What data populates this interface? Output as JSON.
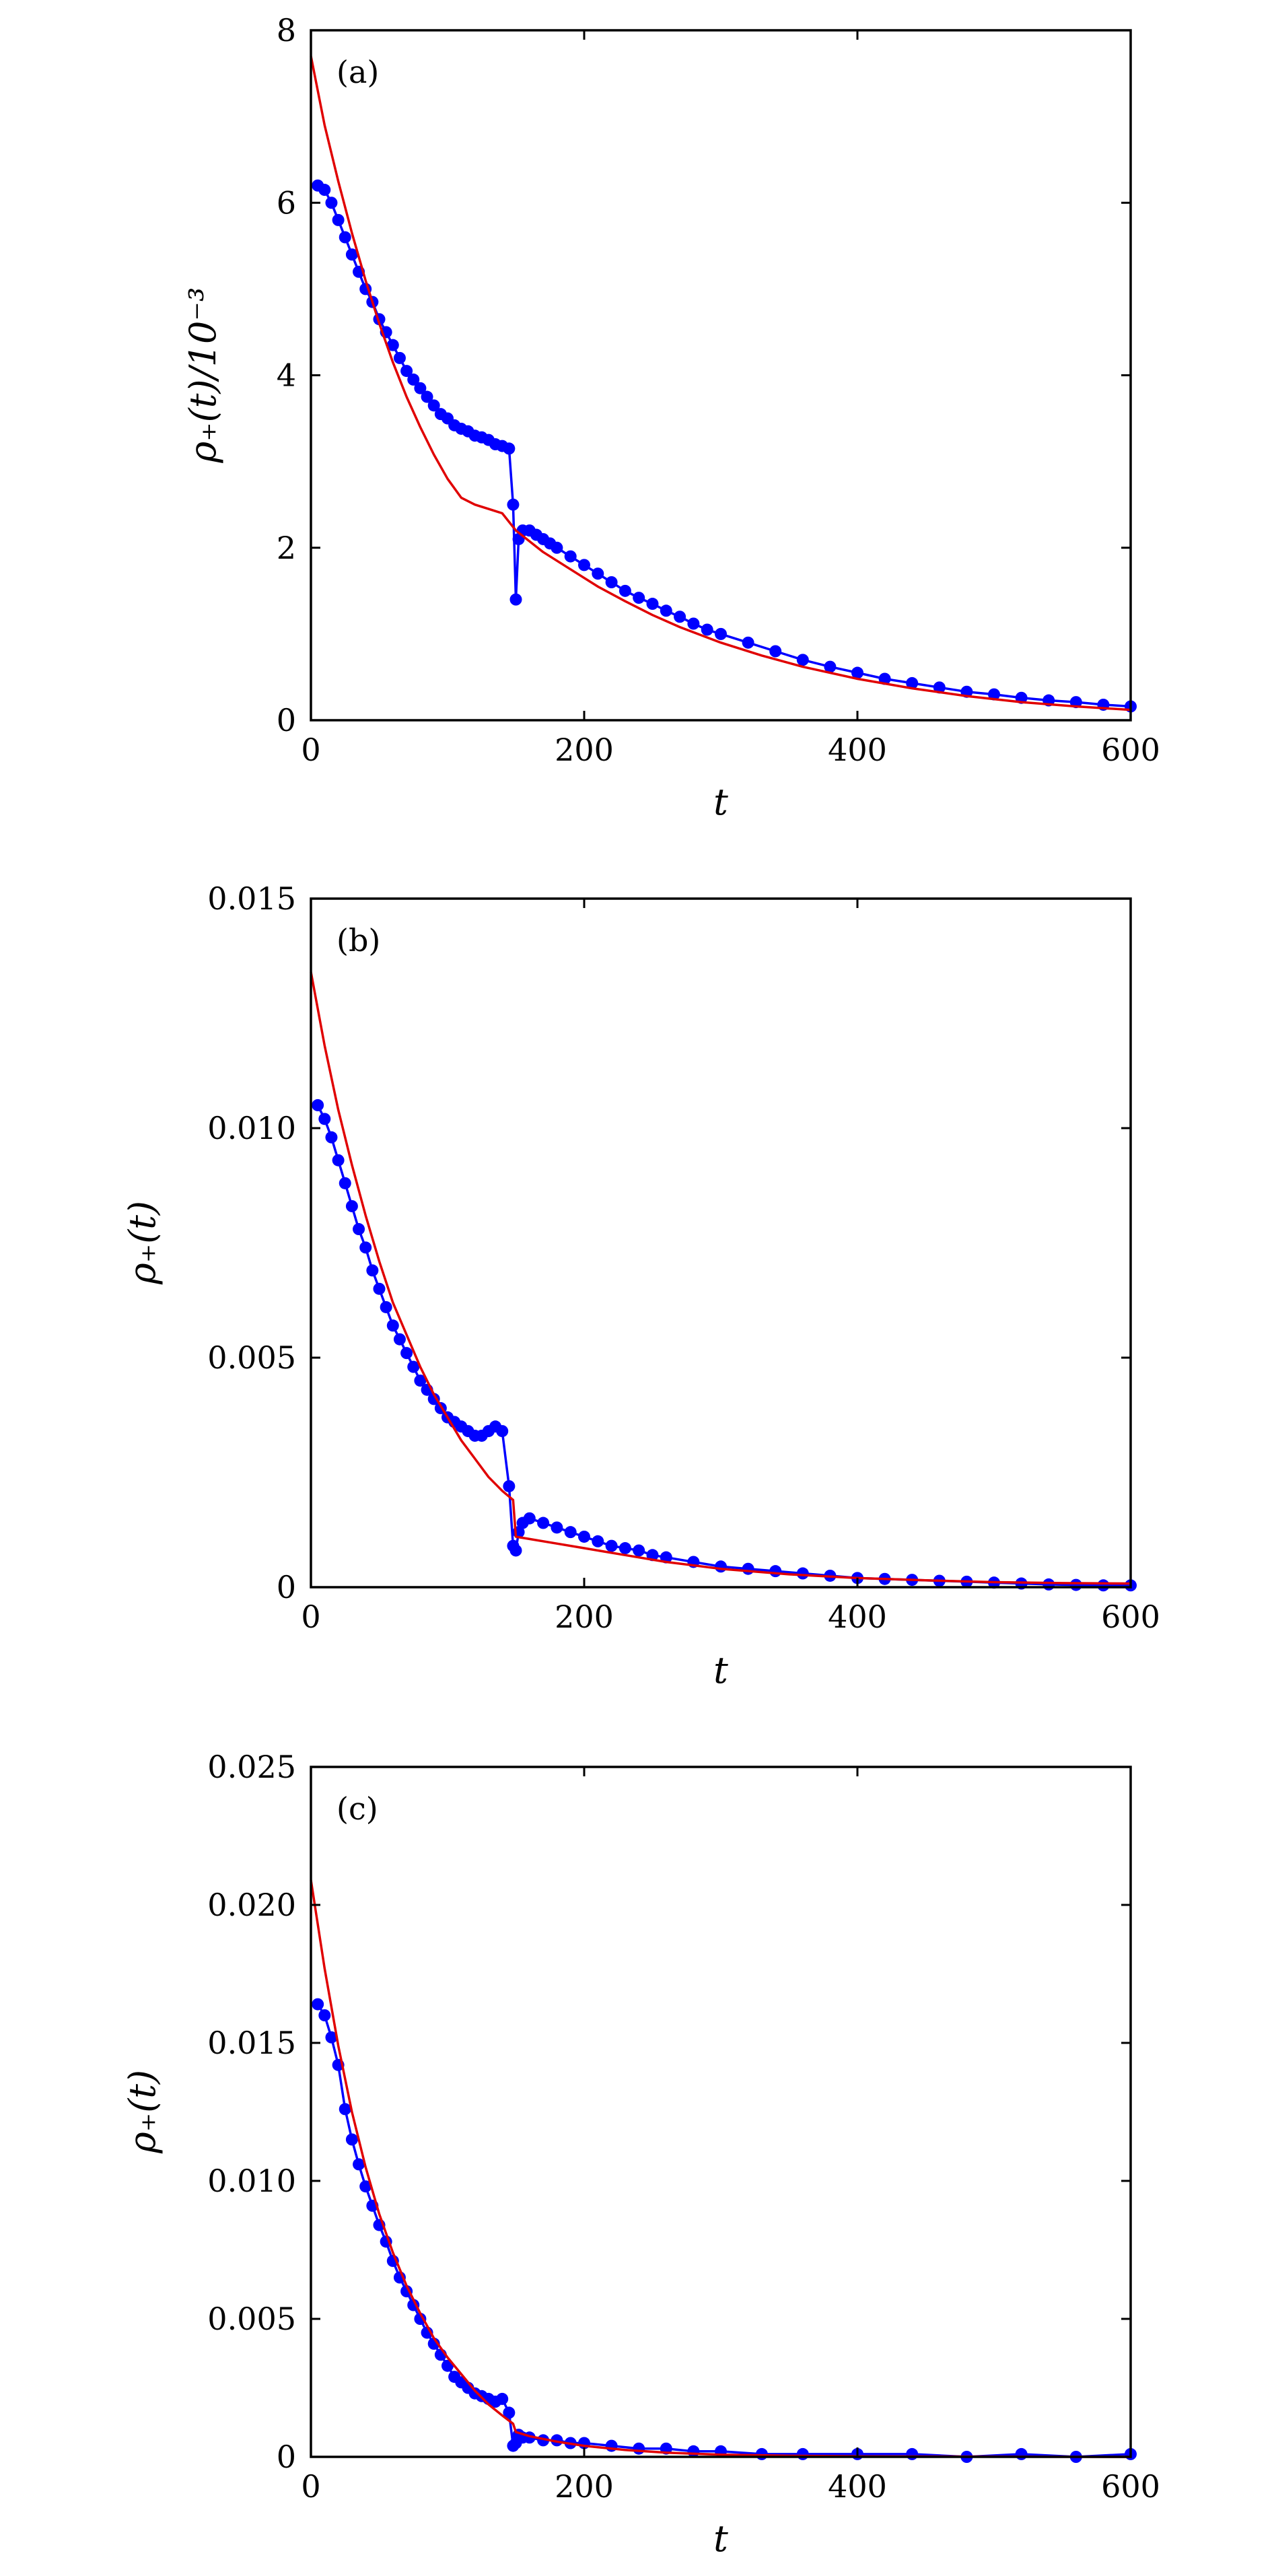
{
  "chart_data": [
    {
      "type": "line",
      "panel_label": "(a)",
      "xlabel": "t",
      "ylabel": "ρ₊(t)/10⁻³",
      "xlim": [
        0,
        600
      ],
      "ylim": [
        0,
        8
      ],
      "xticks": [
        0,
        200,
        400,
        600
      ],
      "yticks": [
        0,
        2,
        4,
        6,
        8
      ],
      "ytick_labels": [
        "0",
        "2",
        "4",
        "6",
        "8"
      ],
      "series": [
        {
          "style": "line-with-markers",
          "color": "#0000ff",
          "x": [
            5,
            10,
            15,
            20,
            25,
            30,
            35,
            40,
            45,
            50,
            55,
            60,
            65,
            70,
            75,
            80,
            85,
            90,
            95,
            100,
            105,
            110,
            115,
            120,
            125,
            130,
            135,
            140,
            145,
            148,
            150,
            152,
            155,
            160,
            165,
            170,
            175,
            180,
            190,
            200,
            210,
            220,
            230,
            240,
            250,
            260,
            270,
            280,
            290,
            300,
            320,
            340,
            360,
            380,
            400,
            420,
            440,
            460,
            480,
            500,
            520,
            540,
            560,
            580,
            600
          ],
          "y": [
            6.2,
            6.15,
            6.0,
            5.8,
            5.6,
            5.4,
            5.2,
            5.0,
            4.85,
            4.65,
            4.5,
            4.35,
            4.2,
            4.05,
            3.95,
            3.85,
            3.75,
            3.65,
            3.55,
            3.5,
            3.42,
            3.38,
            3.35,
            3.3,
            3.28,
            3.25,
            3.2,
            3.18,
            3.15,
            2.5,
            1.4,
            2.1,
            2.2,
            2.2,
            2.15,
            2.1,
            2.05,
            2.0,
            1.9,
            1.8,
            1.7,
            1.6,
            1.5,
            1.42,
            1.35,
            1.27,
            1.2,
            1.12,
            1.05,
            1.0,
            0.9,
            0.8,
            0.7,
            0.62,
            0.55,
            0.48,
            0.43,
            0.38,
            0.33,
            0.3,
            0.26,
            0.23,
            0.21,
            0.18,
            0.16
          ]
        },
        {
          "style": "line",
          "color": "#e00000",
          "x": [
            0,
            10,
            20,
            30,
            40,
            50,
            60,
            70,
            80,
            90,
            100,
            110,
            120,
            130,
            140,
            150,
            170,
            190,
            210,
            230,
            250,
            270,
            300,
            330,
            360,
            400,
            440,
            480,
            520,
            560,
            600
          ],
          "y": [
            7.7,
            6.9,
            6.25,
            5.65,
            5.1,
            4.6,
            4.15,
            3.75,
            3.4,
            3.08,
            2.8,
            2.58,
            2.5,
            2.45,
            2.4,
            2.2,
            1.95,
            1.75,
            1.55,
            1.38,
            1.22,
            1.08,
            0.9,
            0.75,
            0.62,
            0.48,
            0.37,
            0.28,
            0.21,
            0.16,
            0.12
          ]
        }
      ]
    },
    {
      "type": "line",
      "panel_label": "(b)",
      "xlabel": "t",
      "ylabel": "ρ₊(t)",
      "xlim": [
        0,
        600
      ],
      "ylim": [
        0,
        0.015
      ],
      "xticks": [
        0,
        200,
        400,
        600
      ],
      "yticks": [
        0,
        0.005,
        0.01,
        0.015
      ],
      "ytick_labels": [
        "0",
        "0.005",
        "0.010",
        "0.015"
      ],
      "series": [
        {
          "style": "line-with-markers",
          "color": "#0000ff",
          "x": [
            5,
            10,
            15,
            20,
            25,
            30,
            35,
            40,
            45,
            50,
            55,
            60,
            65,
            70,
            75,
            80,
            85,
            90,
            95,
            100,
            105,
            110,
            115,
            120,
            125,
            130,
            135,
            140,
            145,
            148,
            150,
            152,
            155,
            160,
            170,
            180,
            190,
            200,
            210,
            220,
            230,
            240,
            250,
            260,
            280,
            300,
            320,
            340,
            360,
            380,
            400,
            420,
            440,
            460,
            480,
            500,
            520,
            540,
            560,
            580,
            600
          ],
          "y": [
            0.0105,
            0.0102,
            0.0098,
            0.0093,
            0.0088,
            0.0083,
            0.0078,
            0.0074,
            0.0069,
            0.0065,
            0.0061,
            0.0057,
            0.0054,
            0.0051,
            0.0048,
            0.0045,
            0.0043,
            0.0041,
            0.0039,
            0.0037,
            0.0036,
            0.0035,
            0.0034,
            0.0033,
            0.0033,
            0.0034,
            0.0035,
            0.0034,
            0.0022,
            0.0009,
            0.0008,
            0.0012,
            0.0014,
            0.0015,
            0.0014,
            0.0013,
            0.0012,
            0.0011,
            0.001,
            0.0009,
            0.00085,
            0.0008,
            0.0007,
            0.00065,
            0.00055,
            0.00045,
            0.0004,
            0.00035,
            0.0003,
            0.00025,
            0.0002,
            0.00018,
            0.00016,
            0.00014,
            0.00012,
            0.0001,
            8e-05,
            6e-05,
            5e-05,
            4e-05,
            4e-05
          ]
        },
        {
          "style": "line",
          "color": "#e00000",
          "x": [
            0,
            10,
            20,
            30,
            40,
            50,
            60,
            70,
            80,
            90,
            100,
            110,
            120,
            130,
            140,
            148,
            150,
            160,
            180,
            200,
            230,
            260,
            300,
            350,
            400,
            450,
            500,
            550,
            600
          ],
          "y": [
            0.0134,
            0.0118,
            0.0104,
            0.0092,
            0.0081,
            0.0071,
            0.0062,
            0.0055,
            0.0048,
            0.0042,
            0.0037,
            0.0032,
            0.0028,
            0.0024,
            0.0021,
            0.0019,
            0.0011,
            0.00105,
            0.00095,
            0.00085,
            0.0007,
            0.00055,
            0.0004,
            0.00028,
            0.0002,
            0.00015,
            0.00011,
            9e-05,
            8e-05
          ]
        }
      ]
    },
    {
      "type": "line",
      "panel_label": "(c)",
      "xlabel": "t",
      "ylabel": "ρ₊(t)",
      "xlim": [
        0,
        600
      ],
      "ylim": [
        0,
        0.025
      ],
      "xticks": [
        0,
        200,
        400,
        600
      ],
      "yticks": [
        0,
        0.005,
        0.01,
        0.015,
        0.02,
        0.025
      ],
      "ytick_labels": [
        "0",
        "0.005",
        "0.010",
        "0.015",
        "0.020",
        "0.025"
      ],
      "series": [
        {
          "style": "line-with-markers",
          "color": "#0000ff",
          "x": [
            5,
            10,
            15,
            20,
            25,
            30,
            35,
            40,
            45,
            50,
            55,
            60,
            65,
            70,
            75,
            80,
            85,
            90,
            95,
            100,
            105,
            110,
            115,
            120,
            125,
            130,
            135,
            140,
            145,
            148,
            150,
            152,
            155,
            160,
            170,
            180,
            190,
            200,
            220,
            240,
            260,
            280,
            300,
            330,
            360,
            400,
            440,
            480,
            520,
            560,
            600
          ],
          "y": [
            0.0164,
            0.016,
            0.0152,
            0.0142,
            0.0126,
            0.0115,
            0.0106,
            0.0098,
            0.0091,
            0.0084,
            0.0078,
            0.0071,
            0.0065,
            0.006,
            0.0055,
            0.005,
            0.0045,
            0.0041,
            0.0037,
            0.0033,
            0.0029,
            0.0027,
            0.0025,
            0.0023,
            0.0022,
            0.0021,
            0.002,
            0.0021,
            0.0016,
            0.0004,
            0.0005,
            0.0008,
            0.0007,
            0.0007,
            0.0006,
            0.0006,
            0.0005,
            0.0005,
            0.0004,
            0.0003,
            0.0003,
            0.0002,
            0.0002,
            0.0001,
            0.0001,
            0.0001,
            0.0001,
            0.0,
            0.0001,
            0.0,
            0.0001
          ]
        },
        {
          "style": "line",
          "color": "#e00000",
          "x": [
            0,
            10,
            20,
            30,
            40,
            50,
            60,
            70,
            80,
            90,
            100,
            110,
            120,
            130,
            140,
            148,
            150,
            160,
            180,
            200,
            230,
            260,
            300,
            350,
            400,
            500,
            600
          ],
          "y": [
            0.0209,
            0.0177,
            0.0149,
            0.0125,
            0.0105,
            0.0088,
            0.0074,
            0.0062,
            0.0052,
            0.0043,
            0.0036,
            0.003,
            0.0024,
            0.0019,
            0.0015,
            0.0012,
            0.0009,
            0.00075,
            0.00055,
            0.0004,
            0.00025,
            0.00015,
            8e-05,
            4e-05,
            2e-05,
            1e-05,
            0.0
          ]
        }
      ]
    }
  ]
}
